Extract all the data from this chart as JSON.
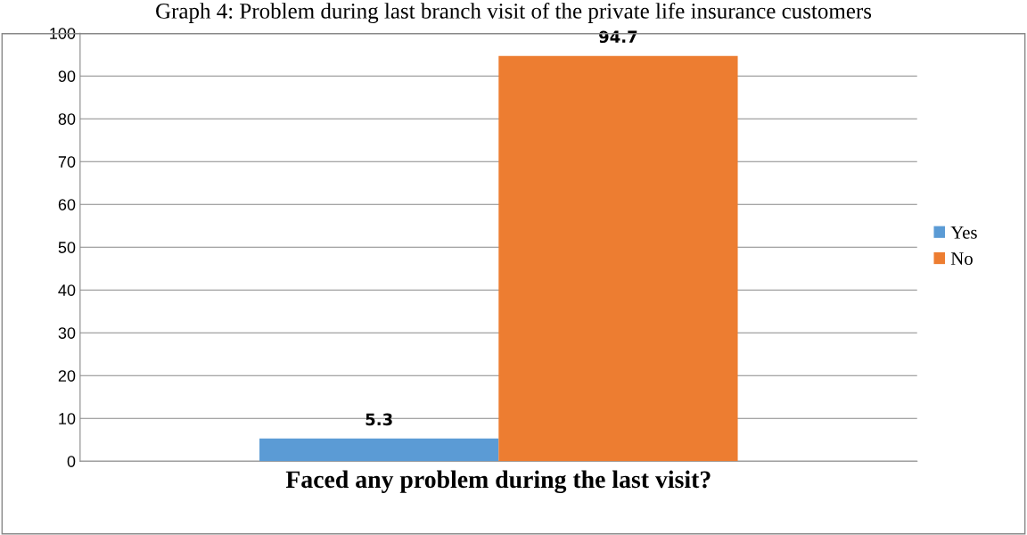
{
  "chart_data": {
    "type": "bar",
    "title": "Graph 4: Problem during last branch visit of the private life insurance customers",
    "xlabel": "Faced any problem during the last visit?",
    "categories": [
      null
    ],
    "series": [
      {
        "name": "Yes",
        "color": "#5b9bd5",
        "values": [
          5.3
        ]
      },
      {
        "name": "No",
        "color": "#ed7d31",
        "values": [
          94.7
        ]
      }
    ],
    "ylim": [
      0,
      100
    ],
    "yticks": [
      0,
      10,
      20,
      30,
      40,
      50,
      60,
      70,
      80,
      90,
      100
    ],
    "grid": "y",
    "legend": "right",
    "data_labels": true
  }
}
